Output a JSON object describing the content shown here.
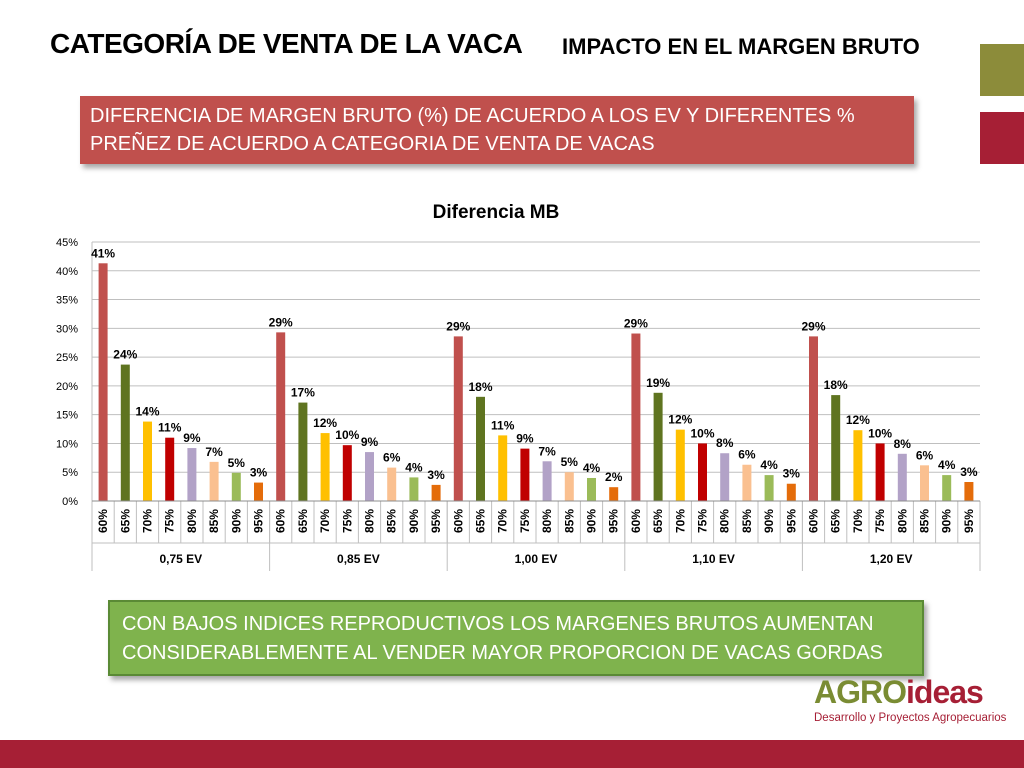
{
  "header": {
    "title": "CATEGORÍA DE VENTA DE LA VACA",
    "subtitle": "IMPACTO EN EL MARGEN BRUTO"
  },
  "info_box": {
    "text_line1": "DIFERENCIA DE MARGEN BRUTO (%) DE ACUERDO A LOS EV Y DIFERENTES %",
    "text_line2": "PREÑEZ DE ACUERDO A CATEGORIA DE VENTA DE VACAS"
  },
  "conclusion_box": {
    "text_line1": "CON BAJOS INDICES REPRODUCTIVOS  LOS MARGENES BRUTOS AUMENTAN",
    "text_line2": "CONSIDERABLEMENTE AL VENDER MAYOR PROPORCION DE VACAS GORDAS"
  },
  "logo": {
    "word_part1": "AGRO",
    "word_part2": "ideas",
    "tagline": "Desarrollo y Proyectos Agropecuarios"
  },
  "colors": {
    "accent_red": "#c0504d",
    "olive": "#8c8c3a",
    "dark_red": "#a61f35",
    "conclusion_green": "#7fb34d",
    "footer": "#a61f35"
  },
  "chart_data": {
    "type": "bar",
    "title": "Diferencia  MB",
    "xlabel": "",
    "ylabel": "",
    "ylim": [
      0,
      45
    ],
    "yticks": [
      "0%",
      "5%",
      "10%",
      "15%",
      "20%",
      "25%",
      "30%",
      "35%",
      "40%",
      "45%"
    ],
    "grid": true,
    "legend": "none",
    "groups": [
      "0,75 EV",
      "0,85 EV",
      "1,00 EV",
      "1,10 EV",
      "1,20 EV"
    ],
    "categories": [
      "60%",
      "65%",
      "70%",
      "75%",
      "80%",
      "85%",
      "90%",
      "95%"
    ],
    "category_colors": [
      "#c0504d",
      "#5f7420",
      "#ffc000",
      "#c00000",
      "#b2a2c7",
      "#fac090",
      "#9bbb59",
      "#e46c0a"
    ],
    "values": [
      [
        41.3,
        23.7,
        13.8,
        11.0,
        9.2,
        6.8,
        4.9,
        3.2
      ],
      [
        29.3,
        17.1,
        11.8,
        9.7,
        8.5,
        5.8,
        4.1,
        2.8
      ],
      [
        28.6,
        18.1,
        11.4,
        9.1,
        6.9,
        5.0,
        4.0,
        2.4
      ],
      [
        29.1,
        18.8,
        12.4,
        10.0,
        8.3,
        6.3,
        4.5,
        3.0
      ],
      [
        28.6,
        18.4,
        12.3,
        10.0,
        8.2,
        6.2,
        4.5,
        3.3
      ]
    ],
    "labels": [
      [
        "41%",
        "24%",
        "14%",
        "11%",
        "9%",
        "7%",
        "5%",
        "3%"
      ],
      [
        "29%",
        "17%",
        "12%",
        "10%",
        "9%",
        "6%",
        "4%",
        "3%"
      ],
      [
        "29%",
        "18%",
        "11%",
        "9%",
        "7%",
        "5%",
        "4%",
        "2%"
      ],
      [
        "29%",
        "19%",
        "12%",
        "10%",
        "8%",
        "6%",
        "4%",
        "3%"
      ],
      [
        "29%",
        "18%",
        "12%",
        "10%",
        "8%",
        "6%",
        "4%",
        "3%"
      ]
    ]
  }
}
